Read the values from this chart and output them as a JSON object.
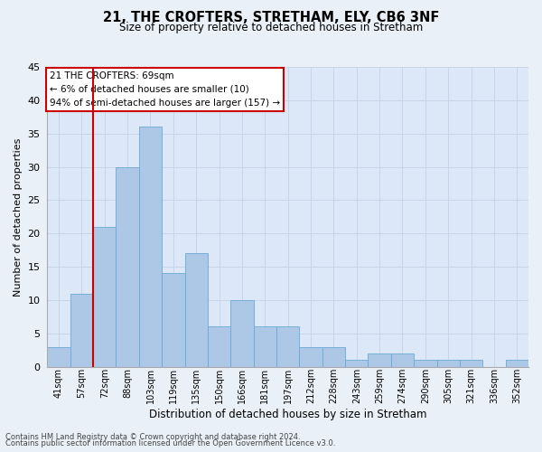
{
  "title1": "21, THE CROFTERS, STRETHAM, ELY, CB6 3NF",
  "title2": "Size of property relative to detached houses in Stretham",
  "xlabel": "Distribution of detached houses by size in Stretham",
  "ylabel": "Number of detached properties",
  "categories": [
    "41sqm",
    "57sqm",
    "72sqm",
    "88sqm",
    "103sqm",
    "119sqm",
    "135sqm",
    "150sqm",
    "166sqm",
    "181sqm",
    "197sqm",
    "212sqm",
    "228sqm",
    "243sqm",
    "259sqm",
    "274sqm",
    "290sqm",
    "305sqm",
    "321sqm",
    "336sqm",
    "352sqm"
  ],
  "values": [
    3,
    11,
    21,
    30,
    36,
    14,
    17,
    6,
    10,
    6,
    6,
    3,
    3,
    1,
    2,
    2,
    1,
    1,
    1,
    0,
    1
  ],
  "bar_color": "#adc8e6",
  "bar_edge_color": "#6aaad4",
  "annotation_line1": "21 THE CROFTERS: 69sqm",
  "annotation_line2": "← 6% of detached houses are smaller (10)",
  "annotation_line3": "94% of semi-detached houses are larger (157) →",
  "annotation_box_color": "#ffffff",
  "annotation_box_edge_color": "#cc0000",
  "red_line_color": "#cc0000",
  "ylim": [
    0,
    45
  ],
  "yticks": [
    0,
    5,
    10,
    15,
    20,
    25,
    30,
    35,
    40,
    45
  ],
  "grid_color": "#c8d4e8",
  "bg_color": "#dce8f8",
  "fig_bg_color": "#eaf0f8",
  "footer1": "Contains HM Land Registry data © Crown copyright and database right 2024.",
  "footer2": "Contains public sector information licensed under the Open Government Licence v3.0."
}
